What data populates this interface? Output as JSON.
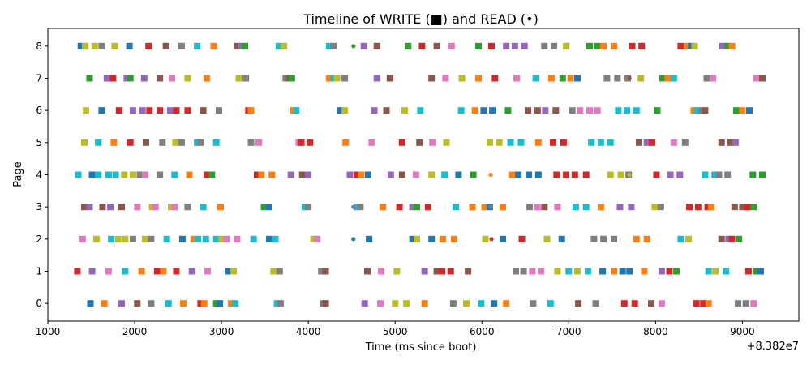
{
  "chart_data": {
    "type": "scatter",
    "title": "Timeline of WRITE (■) and READ (•)",
    "xlabel": "Time (ms since boot)",
    "ylabel": "Page",
    "x_offset_label": "+8.382e7",
    "xlim": [
      1000,
      9650
    ],
    "ylim": [
      -0.55,
      8.55
    ],
    "x_ticks": [
      1000,
      2000,
      3000,
      4000,
      5000,
      6000,
      7000,
      8000,
      9000
    ],
    "x_tick_labels": [
      "1000",
      "2000",
      "3000",
      "4000",
      "5000",
      "6000",
      "7000",
      "8000",
      "9000"
    ],
    "y_ticks": [
      0,
      1,
      2,
      3,
      4,
      5,
      6,
      7,
      8
    ],
    "y_tick_labels": [
      "0",
      "1",
      "2",
      "3",
      "4",
      "5",
      "6",
      "7",
      "8"
    ],
    "grid": false,
    "legend": "none",
    "series_colors": [
      "#1f77b4",
      "#ff7f0e",
      "#2ca02c",
      "#d62728",
      "#9467bd",
      "#8c564b",
      "#e377c2",
      "#7f7f7f",
      "#bcbd22",
      "#17becf"
    ],
    "write_marker": "square",
    "read_marker": "dot",
    "writes": [
      [
        1490,
        0
      ],
      [
        1650,
        0
      ],
      [
        1850,
        0
      ],
      [
        2030,
        0
      ],
      [
        2190,
        0
      ],
      [
        2390,
        0
      ],
      [
        2560,
        0
      ],
      [
        2760,
        0
      ],
      [
        2800,
        0
      ],
      [
        2940,
        0
      ],
      [
        2980,
        0
      ],
      [
        3110,
        0
      ],
      [
        3160,
        0
      ],
      [
        3640,
        0
      ],
      [
        3680,
        0
      ],
      [
        4170,
        0
      ],
      [
        4200,
        0
      ],
      [
        4650,
        0
      ],
      [
        4830,
        0
      ],
      [
        5000,
        0
      ],
      [
        5130,
        0
      ],
      [
        5340,
        0
      ],
      [
        5670,
        0
      ],
      [
        5820,
        0
      ],
      [
        5990,
        0
      ],
      [
        6140,
        0
      ],
      [
        6280,
        0
      ],
      [
        6590,
        0
      ],
      [
        6790,
        0
      ],
      [
        7110,
        0
      ],
      [
        7310,
        0
      ],
      [
        7640,
        0
      ],
      [
        7760,
        0
      ],
      [
        7950,
        0
      ],
      [
        8070,
        0
      ],
      [
        8470,
        0
      ],
      [
        8550,
        0
      ],
      [
        8610,
        0
      ],
      [
        8950,
        0
      ],
      [
        9040,
        0
      ],
      [
        9130,
        0
      ],
      [
        1340,
        1
      ],
      [
        1510,
        1
      ],
      [
        1700,
        1
      ],
      [
        1890,
        1
      ],
      [
        2080,
        1
      ],
      [
        2260,
        1
      ],
      [
        2330,
        1
      ],
      [
        2480,
        1
      ],
      [
        2660,
        1
      ],
      [
        2840,
        1
      ],
      [
        3080,
        1
      ],
      [
        3140,
        1
      ],
      [
        3600,
        1
      ],
      [
        3670,
        1
      ],
      [
        4150,
        1
      ],
      [
        4200,
        1
      ],
      [
        4680,
        1
      ],
      [
        4840,
        1
      ],
      [
        5020,
        1
      ],
      [
        5340,
        1
      ],
      [
        5480,
        1
      ],
      [
        5540,
        1
      ],
      [
        5640,
        1
      ],
      [
        5840,
        1
      ],
      [
        6390,
        1
      ],
      [
        6480,
        1
      ],
      [
        6580,
        1
      ],
      [
        6680,
        1
      ],
      [
        6870,
        1
      ],
      [
        7000,
        1
      ],
      [
        7100,
        1
      ],
      [
        7220,
        1
      ],
      [
        7390,
        1
      ],
      [
        7520,
        1
      ],
      [
        7620,
        1
      ],
      [
        7700,
        1
      ],
      [
        7870,
        1
      ],
      [
        8070,
        1
      ],
      [
        8160,
        1
      ],
      [
        8240,
        1
      ],
      [
        8610,
        1
      ],
      [
        8690,
        1
      ],
      [
        8810,
        1
      ],
      [
        9070,
        1
      ],
      [
        9160,
        1
      ],
      [
        9210,
        1
      ],
      [
        1400,
        2
      ],
      [
        1560,
        2
      ],
      [
        1730,
        2
      ],
      [
        1810,
        2
      ],
      [
        1890,
        2
      ],
      [
        1980,
        2
      ],
      [
        2120,
        2
      ],
      [
        2190,
        2
      ],
      [
        2370,
        2
      ],
      [
        2550,
        2
      ],
      [
        2680,
        2
      ],
      [
        2730,
        2
      ],
      [
        2820,
        2
      ],
      [
        2940,
        2
      ],
      [
        3000,
        2
      ],
      [
        3060,
        2
      ],
      [
        3180,
        2
      ],
      [
        3370,
        2
      ],
      [
        3550,
        2
      ],
      [
        3620,
        2
      ],
      [
        4060,
        2
      ],
      [
        4100,
        2
      ],
      [
        4700,
        2
      ],
      [
        5200,
        2
      ],
      [
        5250,
        2
      ],
      [
        5420,
        2
      ],
      [
        5550,
        2
      ],
      [
        5680,
        2
      ],
      [
        6040,
        2
      ],
      [
        6240,
        2
      ],
      [
        6460,
        2
      ],
      [
        6750,
        2
      ],
      [
        6920,
        2
      ],
      [
        7290,
        2
      ],
      [
        7400,
        2
      ],
      [
        7520,
        2
      ],
      [
        7780,
        2
      ],
      [
        7900,
        2
      ],
      [
        8290,
        2
      ],
      [
        8380,
        2
      ],
      [
        8760,
        2
      ],
      [
        8840,
        2
      ],
      [
        8880,
        2
      ],
      [
        8960,
        2
      ],
      [
        1420,
        3
      ],
      [
        1480,
        3
      ],
      [
        1630,
        3
      ],
      [
        1720,
        3
      ],
      [
        1850,
        3
      ],
      [
        2030,
        3
      ],
      [
        2200,
        3
      ],
      [
        2240,
        3
      ],
      [
        2420,
        3
      ],
      [
        2460,
        3
      ],
      [
        2610,
        3
      ],
      [
        2790,
        3
      ],
      [
        2990,
        3
      ],
      [
        3490,
        3
      ],
      [
        3550,
        3
      ],
      [
        3960,
        3
      ],
      [
        4000,
        3
      ],
      [
        4560,
        3
      ],
      [
        4600,
        3
      ],
      [
        4860,
        3
      ],
      [
        5050,
        3
      ],
      [
        5200,
        3
      ],
      [
        5250,
        3
      ],
      [
        5380,
        3
      ],
      [
        5700,
        3
      ],
      [
        5890,
        3
      ],
      [
        6030,
        3
      ],
      [
        6090,
        3
      ],
      [
        6240,
        3
      ],
      [
        6550,
        3
      ],
      [
        6640,
        3
      ],
      [
        6720,
        3
      ],
      [
        6870,
        3
      ],
      [
        7080,
        3
      ],
      [
        7200,
        3
      ],
      [
        7370,
        3
      ],
      [
        7590,
        3
      ],
      [
        7720,
        3
      ],
      [
        7990,
        3
      ],
      [
        8060,
        3
      ],
      [
        8390,
        3
      ],
      [
        8490,
        3
      ],
      [
        8600,
        3
      ],
      [
        8640,
        3
      ],
      [
        8910,
        3
      ],
      [
        9000,
        3
      ],
      [
        9060,
        3
      ],
      [
        9130,
        3
      ],
      [
        1350,
        4
      ],
      [
        1510,
        4
      ],
      [
        1580,
        4
      ],
      [
        1700,
        4
      ],
      [
        1780,
        4
      ],
      [
        1880,
        4
      ],
      [
        1980,
        4
      ],
      [
        2060,
        4
      ],
      [
        2120,
        4
      ],
      [
        2290,
        4
      ],
      [
        2460,
        4
      ],
      [
        2630,
        4
      ],
      [
        2830,
        4
      ],
      [
        2890,
        4
      ],
      [
        3410,
        4
      ],
      [
        3460,
        4
      ],
      [
        3580,
        4
      ],
      [
        3800,
        4
      ],
      [
        3930,
        4
      ],
      [
        4000,
        4
      ],
      [
        4480,
        4
      ],
      [
        4560,
        4
      ],
      [
        4610,
        4
      ],
      [
        4690,
        4
      ],
      [
        4950,
        4
      ],
      [
        5080,
        4
      ],
      [
        5240,
        4
      ],
      [
        5420,
        4
      ],
      [
        5570,
        4
      ],
      [
        5730,
        4
      ],
      [
        5900,
        4
      ],
      [
        6350,
        4
      ],
      [
        6420,
        4
      ],
      [
        6540,
        4
      ],
      [
        6650,
        4
      ],
      [
        6860,
        4
      ],
      [
        6970,
        4
      ],
      [
        7070,
        4
      ],
      [
        7200,
        4
      ],
      [
        7480,
        4
      ],
      [
        7600,
        4
      ],
      [
        7690,
        4
      ],
      [
        8010,
        4
      ],
      [
        8170,
        4
      ],
      [
        8280,
        4
      ],
      [
        8570,
        4
      ],
      [
        8680,
        4
      ],
      [
        8730,
        4
      ],
      [
        8830,
        4
      ],
      [
        9120,
        4
      ],
      [
        9230,
        4
      ],
      [
        1420,
        5
      ],
      [
        1580,
        5
      ],
      [
        1760,
        5
      ],
      [
        1950,
        5
      ],
      [
        2130,
        5
      ],
      [
        2320,
        5
      ],
      [
        2470,
        5
      ],
      [
        2540,
        5
      ],
      [
        2720,
        5
      ],
      [
        2760,
        5
      ],
      [
        2940,
        5
      ],
      [
        3340,
        5
      ],
      [
        3430,
        5
      ],
      [
        3890,
        5
      ],
      [
        3920,
        5
      ],
      [
        4020,
        5
      ],
      [
        4430,
        5
      ],
      [
        4730,
        5
      ],
      [
        5080,
        5
      ],
      [
        5280,
        5
      ],
      [
        5430,
        5
      ],
      [
        5590,
        5
      ],
      [
        6090,
        5
      ],
      [
        6200,
        5
      ],
      [
        6330,
        5
      ],
      [
        6450,
        5
      ],
      [
        6650,
        5
      ],
      [
        6820,
        5
      ],
      [
        6940,
        5
      ],
      [
        7260,
        5
      ],
      [
        7370,
        5
      ],
      [
        7480,
        5
      ],
      [
        7810,
        5
      ],
      [
        7900,
        5
      ],
      [
        7960,
        5
      ],
      [
        8210,
        5
      ],
      [
        8340,
        5
      ],
      [
        8760,
        5
      ],
      [
        8860,
        5
      ],
      [
        8920,
        5
      ],
      [
        1440,
        6
      ],
      [
        1620,
        6
      ],
      [
        1820,
        6
      ],
      [
        1980,
        6
      ],
      [
        2090,
        6
      ],
      [
        2170,
        6
      ],
      [
        2290,
        6
      ],
      [
        2410,
        6
      ],
      [
        2480,
        6
      ],
      [
        2610,
        6
      ],
      [
        2790,
        6
      ],
      [
        2970,
        6
      ],
      [
        3310,
        6
      ],
      [
        3340,
        6
      ],
      [
        3830,
        6
      ],
      [
        3860,
        6
      ],
      [
        4370,
        6
      ],
      [
        4420,
        6
      ],
      [
        4760,
        6
      ],
      [
        4900,
        6
      ],
      [
        5110,
        6
      ],
      [
        5290,
        6
      ],
      [
        5760,
        6
      ],
      [
        5920,
        6
      ],
      [
        6020,
        6
      ],
      [
        6120,
        6
      ],
      [
        6300,
        6
      ],
      [
        6530,
        6
      ],
      [
        6640,
        6
      ],
      [
        6730,
        6
      ],
      [
        6850,
        6
      ],
      [
        7040,
        6
      ],
      [
        7130,
        6
      ],
      [
        7240,
        6
      ],
      [
        7330,
        6
      ],
      [
        7570,
        6
      ],
      [
        7670,
        6
      ],
      [
        7780,
        6
      ],
      [
        8020,
        6
      ],
      [
        8440,
        6
      ],
      [
        8480,
        6
      ],
      [
        8530,
        6
      ],
      [
        8570,
        6
      ],
      [
        8930,
        6
      ],
      [
        9000,
        6
      ],
      [
        9080,
        6
      ],
      [
        1480,
        7
      ],
      [
        1680,
        7
      ],
      [
        1750,
        7
      ],
      [
        1910,
        7
      ],
      [
        1950,
        7
      ],
      [
        2110,
        7
      ],
      [
        2290,
        7
      ],
      [
        2430,
        7
      ],
      [
        2610,
        7
      ],
      [
        2830,
        7
      ],
      [
        3200,
        7
      ],
      [
        3280,
        7
      ],
      [
        3740,
        7
      ],
      [
        3780,
        7
      ],
      [
        3810,
        7
      ],
      [
        4240,
        7
      ],
      [
        4290,
        7
      ],
      [
        4330,
        7
      ],
      [
        4420,
        7
      ],
      [
        4790,
        7
      ],
      [
        4940,
        7
      ],
      [
        5420,
        7
      ],
      [
        5580,
        7
      ],
      [
        5770,
        7
      ],
      [
        5960,
        7
      ],
      [
        6150,
        7
      ],
      [
        6400,
        7
      ],
      [
        6620,
        7
      ],
      [
        6800,
        7
      ],
      [
        6930,
        7
      ],
      [
        7020,
        7
      ],
      [
        7100,
        7
      ],
      [
        7440,
        7
      ],
      [
        7560,
        7
      ],
      [
        7680,
        7
      ],
      [
        7830,
        7
      ],
      [
        8080,
        7
      ],
      [
        8140,
        7
      ],
      [
        8210,
        7
      ],
      [
        8590,
        7
      ],
      [
        8660,
        7
      ],
      [
        9160,
        7
      ],
      [
        9230,
        7
      ],
      [
        1380,
        8
      ],
      [
        1430,
        8
      ],
      [
        1540,
        8
      ],
      [
        1620,
        8
      ],
      [
        1770,
        8
      ],
      [
        1940,
        8
      ],
      [
        2160,
        8
      ],
      [
        2360,
        8
      ],
      [
        2540,
        8
      ],
      [
        2720,
        8
      ],
      [
        2910,
        8
      ],
      [
        3180,
        8
      ],
      [
        3230,
        8
      ],
      [
        3270,
        8
      ],
      [
        3660,
        8
      ],
      [
        3720,
        8
      ],
      [
        4240,
        8
      ],
      [
        4290,
        8
      ],
      [
        4640,
        8
      ],
      [
        4790,
        8
      ],
      [
        5150,
        8
      ],
      [
        5310,
        8
      ],
      [
        5480,
        8
      ],
      [
        5650,
        8
      ],
      [
        5960,
        8
      ],
      [
        6110,
        8
      ],
      [
        6280,
        8
      ],
      [
        6380,
        8
      ],
      [
        6490,
        8
      ],
      [
        6720,
        8
      ],
      [
        6830,
        8
      ],
      [
        6970,
        8
      ],
      [
        7240,
        8
      ],
      [
        7330,
        8
      ],
      [
        7400,
        8
      ],
      [
        7520,
        8
      ],
      [
        7730,
        8
      ],
      [
        7840,
        8
      ],
      [
        8290,
        8
      ],
      [
        8360,
        8
      ],
      [
        8410,
        8
      ],
      [
        8450,
        8
      ],
      [
        8770,
        8
      ],
      [
        8830,
        8
      ],
      [
        8880,
        8
      ]
    ],
    "reads": [
      [
        4520,
        8
      ],
      [
        7700,
        7
      ],
      [
        7700,
        4
      ],
      [
        6100,
        4
      ],
      [
        4520,
        3
      ],
      [
        6100,
        3
      ],
      [
        4520,
        2
      ],
      [
        6110,
        2
      ]
    ]
  }
}
